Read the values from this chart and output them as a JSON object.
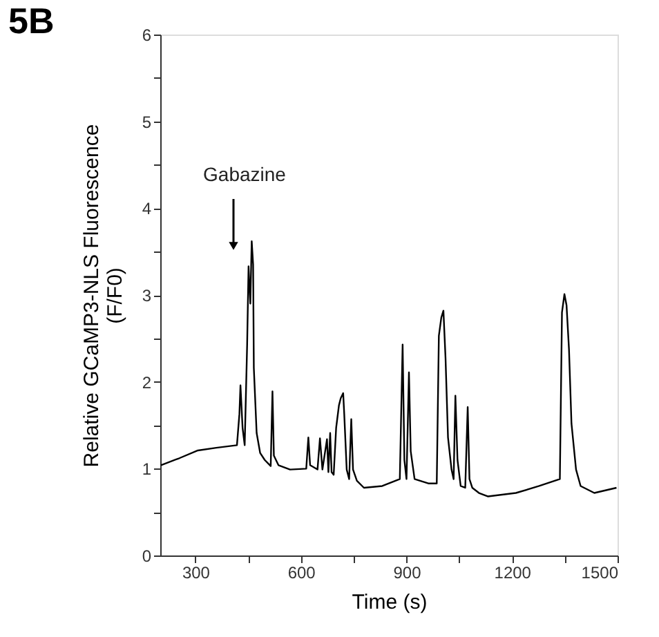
{
  "chart_data": {
    "type": "line",
    "xlabel": "Time (s)",
    "ylabel": "Relative GCaMP3-NLS Fluorescence\n(F/F0)",
    "annotations": [
      "5B",
      "Gabazine"
    ],
    "x": [
      202,
      254,
      307,
      359,
      418,
      425,
      428,
      434,
      440,
      447,
      451,
      456,
      460,
      464,
      466,
      474,
      484,
      497,
      514,
      519,
      523,
      536,
      569,
      615,
      621,
      626,
      647,
      654,
      661,
      674,
      678,
      683,
      687,
      693,
      700,
      708,
      713,
      720,
      723,
      730,
      737,
      743,
      748,
      759,
      779,
      831,
      881,
      889,
      894,
      900,
      907,
      912,
      923,
      962,
      986,
      992,
      999,
      1005,
      1011,
      1018,
      1028,
      1034,
      1039,
      1045,
      1054,
      1067,
      1074,
      1079,
      1087,
      1106,
      1132,
      1211,
      1277,
      1336,
      1342,
      1349,
      1355,
      1362,
      1369,
      1382,
      1395,
      1434,
      1497
    ],
    "series": [
      {
        "color": "#000000",
        "values": [
          1.04,
          1.12,
          1.21,
          1.24,
          1.27,
          1.63,
          1.96,
          1.47,
          1.27,
          2.43,
          3.33,
          2.9,
          3.62,
          3.35,
          2.16,
          1.41,
          1.18,
          1.1,
          1.03,
          1.89,
          1.15,
          1.04,
          0.99,
          1.0,
          1.36,
          1.04,
          0.99,
          1.35,
          0.99,
          1.34,
          0.96,
          1.41,
          0.96,
          0.93,
          1.47,
          1.73,
          1.81,
          1.87,
          1.63,
          0.99,
          0.88,
          1.57,
          0.99,
          0.86,
          0.78,
          0.8,
          0.88,
          2.43,
          1.1,
          0.88,
          2.11,
          1.2,
          0.88,
          0.83,
          0.83,
          2.53,
          2.74,
          2.82,
          2.27,
          1.36,
          0.99,
          0.88,
          1.84,
          1.1,
          0.8,
          0.78,
          1.71,
          0.88,
          0.78,
          0.72,
          0.68,
          0.72,
          0.8,
          0.88,
          2.8,
          3.01,
          2.88,
          2.37,
          1.52,
          0.99,
          0.8,
          0.72,
          0.78
        ]
      }
    ],
    "xlim": [
      200,
      1500
    ],
    "xticks": [
      300,
      {
        "value": 450,
        "label": null
      },
      600,
      {
        "value": 750,
        "label": null
      },
      900,
      {
        "value": 1050,
        "label": null
      },
      1200,
      {
        "value": 1350,
        "label": null
      },
      1500
    ],
    "ylim": [
      0,
      6
    ],
    "yticks": [
      0,
      {
        "value": 0.5,
        "label": null
      },
      1,
      {
        "value": 1.5,
        "label": null
      },
      2,
      {
        "value": 2.5,
        "label": null
      },
      3,
      {
        "value": 3.5,
        "label": null
      },
      4,
      {
        "value": 4.5,
        "label": null
      },
      5,
      {
        "value": 5.5,
        "label": null
      },
      6
    ],
    "grid": false,
    "marker": "none",
    "line_style": "solid"
  }
}
